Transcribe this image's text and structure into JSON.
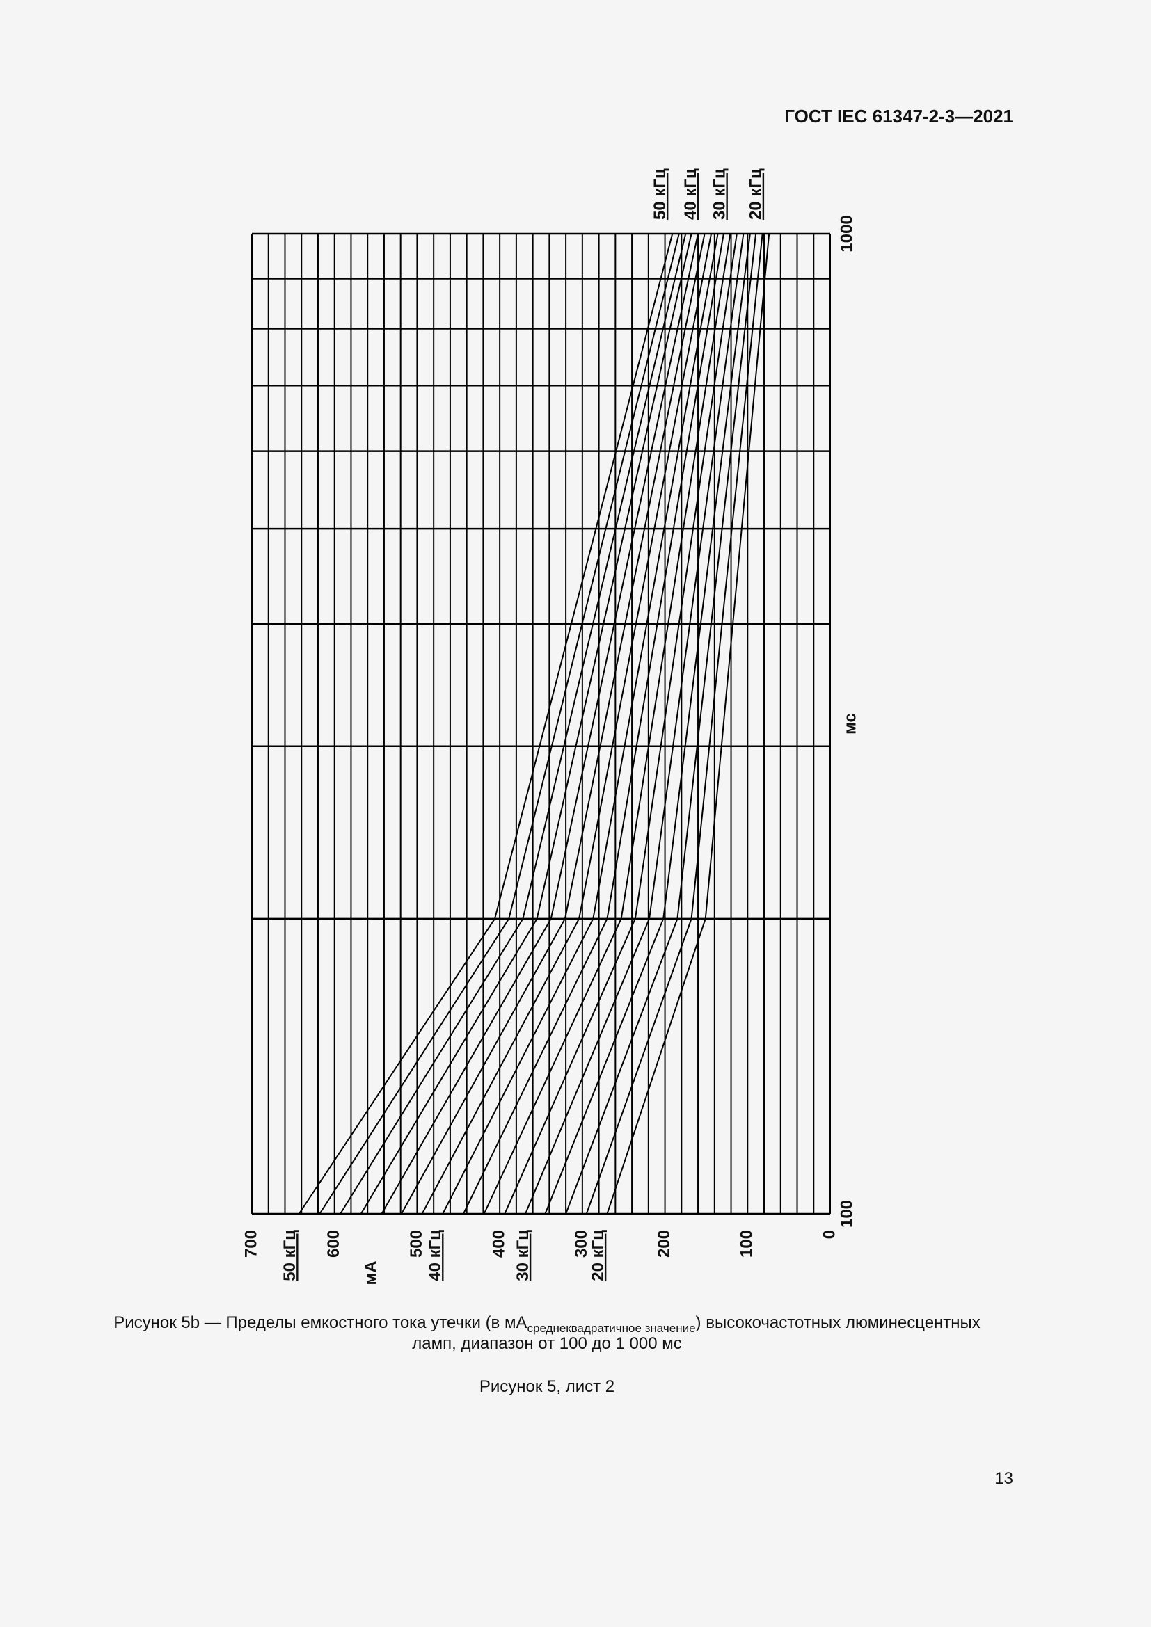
{
  "header": {
    "title": "ГОСТ IEC 61347-2-3—2021"
  },
  "chart_data": {
    "type": "line",
    "log_x": true,
    "rotated": true,
    "color": "#000000",
    "x": [
      100,
      200,
      1000
    ],
    "xlim": [
      100,
      1000
    ],
    "xticks": [
      100,
      1000
    ],
    "xgrid": [
      100,
      200,
      300,
      400,
      500,
      600,
      700,
      800,
      900,
      1000
    ],
    "ylim": [
      0,
      700
    ],
    "yticks": [
      0,
      100,
      200,
      300,
      400,
      500,
      600,
      700
    ],
    "ygrid": [
      0,
      20,
      40,
      60,
      80,
      100,
      120,
      140,
      160,
      180,
      200,
      220,
      240,
      260,
      280,
      300,
      320,
      340,
      360,
      380,
      400,
      420,
      440,
      460,
      480,
      500,
      520,
      540,
      560,
      580,
      600,
      620,
      640,
      660,
      680,
      700
    ],
    "x_label": "мс",
    "y_label": "мА",
    "series": [
      {
        "values": [
          270,
          151,
          74
        ]
      },
      {
        "values": [
          295,
          168,
          82
        ]
      },
      {
        "values": [
          320,
          185,
          90
        ]
      },
      {
        "values": [
          345,
          202,
          97
        ]
      },
      {
        "values": [
          369,
          219,
          105
        ]
      },
      {
        "values": [
          394,
          236,
          113
        ]
      },
      {
        "values": [
          419,
          253,
          121
        ]
      },
      {
        "values": [
          444,
          270,
          129
        ]
      },
      {
        "values": [
          469,
          287,
          136
        ]
      },
      {
        "values": [
          494,
          304,
          144
        ]
      },
      {
        "values": [
          519,
          321,
          152
        ]
      },
      {
        "values": [
          543,
          338,
          160
        ]
      },
      {
        "values": [
          568,
          355,
          168
        ]
      },
      {
        "values": [
          593,
          372,
          175
        ]
      },
      {
        "values": [
          618,
          389,
          183
        ]
      },
      {
        "values": [
          643,
          406,
          191
        ]
      }
    ],
    "annotations_bottom": [
      {
        "text": "50 кГц",
        "value": 653
      },
      {
        "text": "40 кГц",
        "value": 477
      },
      {
        "text": "30 кГц",
        "value": 371
      },
      {
        "text": "20 кГц",
        "value": 280
      }
    ],
    "annotations_top": [
      {
        "text": "50 кГц",
        "value": 205
      },
      {
        "text": "40 кГц",
        "value": 168
      },
      {
        "text": "30 кГц",
        "value": 133
      },
      {
        "text": "20 кГц",
        "value": 89
      }
    ]
  },
  "caption": {
    "before": "Рисунок 5b — Пределы емкостного тока утечки (в мА",
    "subscript": "среднеквадратичное значение",
    "after": ") высокочастотных люминесцентных",
    "line2": "ламп, диапазон от 100 до 1 000 мс"
  },
  "sheet": "Рисунок 5, лист 2",
  "page_number": "13"
}
